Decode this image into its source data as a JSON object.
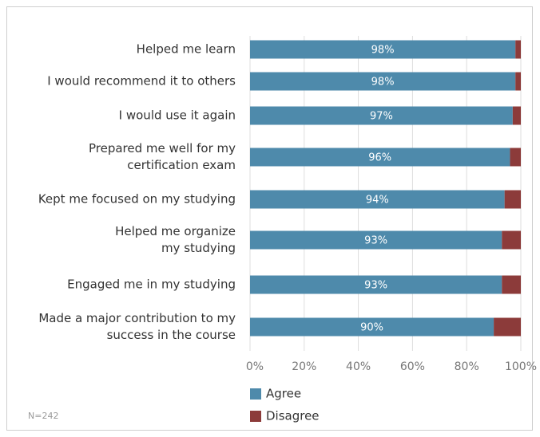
{
  "chart_data": {
    "type": "stacked_barh",
    "categories": [
      "Helped me learn",
      "I would recommend it to others",
      "I would use it again",
      "Prepared me well for my\ncertification exam",
      "Kept me focused on my studying",
      "Helped me organize\nmy studying",
      "Engaged me in my studying",
      "Made a major contribution to my\nsuccess in the course"
    ],
    "series": [
      {
        "name": "Agree",
        "color": "#4e8aab",
        "values": [
          98,
          98,
          97,
          96,
          94,
          93,
          93,
          90
        ],
        "value_labels": [
          "98%",
          "98%",
          "97%",
          "96%",
          "94%",
          "93%",
          "93%",
          "90%"
        ]
      },
      {
        "name": "Disagree",
        "color": "#8c3b3a",
        "values": [
          2,
          2,
          3,
          4,
          6,
          7,
          7,
          10
        ]
      }
    ],
    "xlim": [
      0,
      100
    ],
    "xticks": [
      {
        "value": 0,
        "label": "0%"
      },
      {
        "value": 20,
        "label": "20%"
      },
      {
        "value": 40,
        "label": "40%"
      },
      {
        "value": 60,
        "label": "60%"
      },
      {
        "value": 80,
        "label": "80%"
      },
      {
        "value": 100,
        "label": "100%"
      }
    ],
    "grid": true,
    "note": "N=242"
  }
}
